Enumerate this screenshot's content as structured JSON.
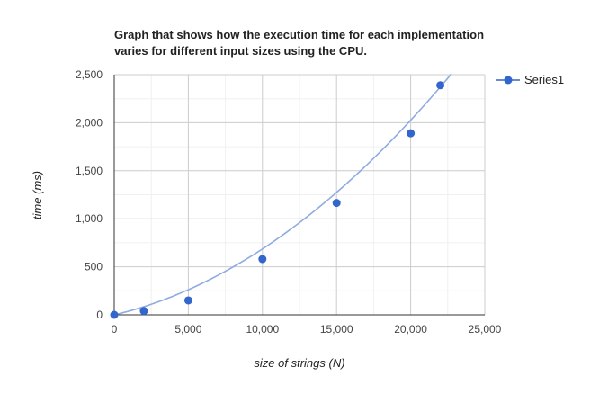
{
  "chart_data": {
    "type": "scatter",
    "title_lines": [
      "Graph that shows how the execution time for each implementation",
      "varies for different input sizes using the CPU."
    ],
    "xlabel": "size of strings (N)",
    "ylabel": "time (ms)",
    "xlim": [
      0,
      25000
    ],
    "ylim": [
      0,
      2500
    ],
    "x_ticks": [
      0,
      5000,
      10000,
      15000,
      20000,
      25000
    ],
    "x_tick_labels": [
      "0",
      "5,000",
      "10,000",
      "15,000",
      "20,000",
      "25,000"
    ],
    "y_ticks": [
      0,
      500,
      1000,
      1500,
      2000,
      2500
    ],
    "y_tick_labels": [
      "0",
      "500",
      "1,000",
      "1,500",
      "2,000",
      "2,500"
    ],
    "grid": true,
    "legend_position": "right",
    "series": [
      {
        "name": "Series1",
        "color": "#3366cc",
        "x": [
          0,
          2000,
          5000,
          10000,
          15000,
          20000,
          22000
        ],
        "y": [
          0,
          40,
          150,
          580,
          1165,
          1890,
          2390
        ]
      }
    ],
    "trendline": {
      "type": "polynomial",
      "color": "#8fabe0",
      "coefficients": [
        0,
        0.0359,
        3.27e-06
      ],
      "x_end": 22750
    }
  }
}
